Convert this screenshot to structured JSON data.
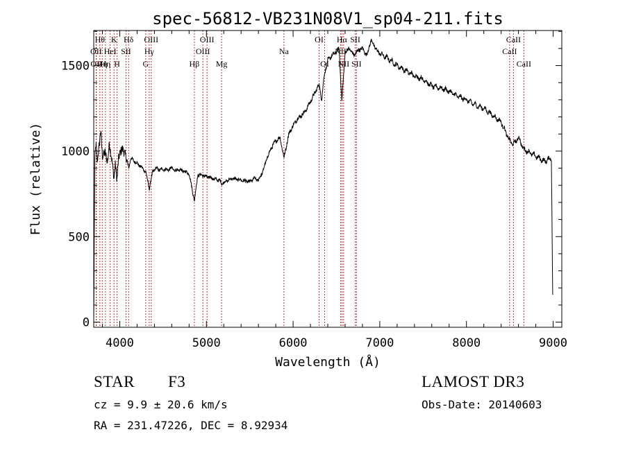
{
  "chart_data": {
    "type": "line",
    "title": "spec-56812-VB231N08V1_sp04-211.fits",
    "xlabel": "Wavelength (Å)",
    "ylabel": "Flux (relative)",
    "xlim": [
      3700,
      9100
    ],
    "ylim": [
      -30,
      1705
    ],
    "x_ticks": [
      4000,
      5000,
      6000,
      7000,
      8000,
      9000
    ],
    "y_ticks": [
      0,
      500,
      1000,
      1500
    ],
    "grid": false,
    "series": [
      {
        "name": "flux",
        "anchors": [
          [
            3700,
            0
          ],
          [
            3712,
            950
          ],
          [
            3725,
            1050
          ],
          [
            3740,
            930
          ],
          [
            3760,
            1020
          ],
          [
            3780,
            1130
          ],
          [
            3800,
            960
          ],
          [
            3830,
            1000
          ],
          [
            3860,
            930
          ],
          [
            3880,
            1050
          ],
          [
            3900,
            980
          ],
          [
            3920,
            900
          ],
          [
            3933,
            840
          ],
          [
            3950,
            930
          ],
          [
            3968,
            820
          ],
          [
            3985,
            950
          ],
          [
            4000,
            990
          ],
          [
            4030,
            1010
          ],
          [
            4060,
            990
          ],
          [
            4101,
            900
          ],
          [
            4130,
            960
          ],
          [
            4170,
            940
          ],
          [
            4220,
            920
          ],
          [
            4260,
            900
          ],
          [
            4300,
            880
          ],
          [
            4340,
            780
          ],
          [
            4380,
            880
          ],
          [
            4420,
            900
          ],
          [
            4460,
            890
          ],
          [
            4500,
            895
          ],
          [
            4550,
            890
          ],
          [
            4600,
            900
          ],
          [
            4650,
            885
          ],
          [
            4700,
            890
          ],
          [
            4750,
            880
          ],
          [
            4800,
            870
          ],
          [
            4861,
            710
          ],
          [
            4900,
            860
          ],
          [
            4950,
            860
          ],
          [
            5000,
            850
          ],
          [
            5050,
            845
          ],
          [
            5100,
            835
          ],
          [
            5150,
            830
          ],
          [
            5175,
            810
          ],
          [
            5250,
            830
          ],
          [
            5300,
            840
          ],
          [
            5400,
            830
          ],
          [
            5500,
            820
          ],
          [
            5550,
            840
          ],
          [
            5600,
            830
          ],
          [
            5650,
            880
          ],
          [
            5700,
            960
          ],
          [
            5750,
            1020
          ],
          [
            5800,
            1060
          ],
          [
            5850,
            1080
          ],
          [
            5895,
            960
          ],
          [
            5950,
            1100
          ],
          [
            6000,
            1150
          ],
          [
            6050,
            1190
          ],
          [
            6100,
            1210
          ],
          [
            6150,
            1240
          ],
          [
            6200,
            1290
          ],
          [
            6250,
            1340
          ],
          [
            6300,
            1390
          ],
          [
            6330,
            1300
          ],
          [
            6360,
            1450
          ],
          [
            6400,
            1530
          ],
          [
            6450,
            1560
          ],
          [
            6500,
            1580
          ],
          [
            6530,
            1600
          ],
          [
            6563,
            1290
          ],
          [
            6600,
            1580
          ],
          [
            6650,
            1600
          ],
          [
            6700,
            1560
          ],
          [
            6750,
            1590
          ],
          [
            6800,
            1600
          ],
          [
            6850,
            1560
          ],
          [
            6900,
            1650
          ],
          [
            6950,
            1600
          ],
          [
            7000,
            1570
          ],
          [
            7100,
            1540
          ],
          [
            7200,
            1500
          ],
          [
            7300,
            1470
          ],
          [
            7400,
            1440
          ],
          [
            7500,
            1420
          ],
          [
            7600,
            1380
          ],
          [
            7700,
            1370
          ],
          [
            7800,
            1350
          ],
          [
            7900,
            1320
          ],
          [
            8000,
            1300
          ],
          [
            8100,
            1270
          ],
          [
            8200,
            1250
          ],
          [
            8300,
            1210
          ],
          [
            8400,
            1170
          ],
          [
            8498,
            1060
          ],
          [
            8542,
            1040
          ],
          [
            8600,
            1080
          ],
          [
            8662,
            1010
          ],
          [
            8700,
            1000
          ],
          [
            8800,
            970
          ],
          [
            8900,
            940
          ],
          [
            8980,
            960
          ],
          [
            8995,
            160
          ]
        ]
      }
    ],
    "lines": [
      {
        "x": 3727,
        "labels": [
          "OII"
        ],
        "row": 2
      },
      {
        "x": 3730,
        "labels": [
          "OII"
        ],
        "row": 3
      },
      {
        "x": 3771,
        "labels": [
          "Hθ"
        ],
        "row": 1
      },
      {
        "x": 3798,
        "labels": [
          "Hη"
        ],
        "row": 3
      },
      {
        "x": 3835,
        "labels": [
          "Hη"
        ],
        "row": 3
      },
      {
        "x": 3889,
        "labels": [
          "HeI"
        ],
        "row": 2
      },
      {
        "x": 3934,
        "labels": [
          "K"
        ],
        "row": 1
      },
      {
        "x": 3969,
        "labels": [
          "H"
        ],
        "row": 3
      },
      {
        "x": 4072,
        "labels": [
          "SII"
        ],
        "row": 2
      },
      {
        "x": 4102,
        "labels": [
          "Hδ"
        ],
        "row": 1
      },
      {
        "x": 4300,
        "labels": [
          "G"
        ],
        "row": 3
      },
      {
        "x": 4340,
        "labels": [
          "Hγ"
        ],
        "row": 2
      },
      {
        "x": 4363,
        "labels": [
          "OIII"
        ],
        "row": 1
      },
      {
        "x": 4861,
        "labels": [
          "Hβ"
        ],
        "row": 3
      },
      {
        "x": 4959,
        "labels": [
          "OIII"
        ],
        "row": 2
      },
      {
        "x": 5007,
        "labels": [
          "OIII"
        ],
        "row": 1
      },
      {
        "x": 5175,
        "labels": [
          "Mg"
        ],
        "row": 3
      },
      {
        "x": 5894,
        "labels": [
          "Na"
        ],
        "row": 2
      },
      {
        "x": 6300,
        "labels": [
          "OI"
        ],
        "row": 1
      },
      {
        "x": 6364,
        "labels": [
          "OI"
        ],
        "row": 3
      },
      {
        "x": 6548,
        "labels": [
          "NII"
        ],
        "row": 2
      },
      {
        "x": 6563,
        "labels": [
          "Hα"
        ],
        "row": 1
      },
      {
        "x": 6583,
        "labels": [
          "NII"
        ],
        "row": 3
      },
      {
        "x": 6717,
        "labels": [
          "SII"
        ],
        "row": 1
      },
      {
        "x": 6731,
        "labels": [
          "SII"
        ],
        "row": 3
      },
      {
        "x": 8498,
        "labels": [
          "CaII"
        ],
        "row": 2
      },
      {
        "x": 8542,
        "labels": [
          "CaII"
        ],
        "row": 1
      },
      {
        "x": 8662,
        "labels": [
          "CaII"
        ],
        "row": 3
      }
    ],
    "line_color": "#b22222",
    "curve_color": "#000000"
  },
  "info": {
    "object_class": "STAR",
    "subclass": "F3",
    "survey": "LAMOST DR3",
    "cz": "cz = 9.9 ± 20.6 km/s",
    "obs_date": "Obs-Date: 20140603",
    "coords": "RA = 231.47226, DEC =    8.92934"
  }
}
